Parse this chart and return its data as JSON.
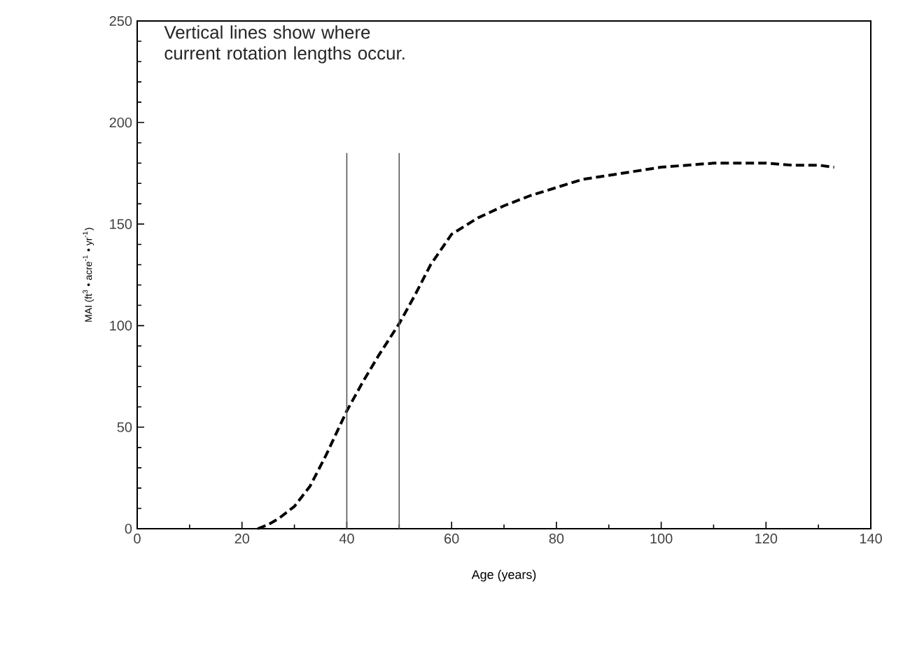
{
  "chart_data": {
    "type": "line",
    "xlabel": "Age (years)",
    "ylabel": "MAI (ft$^{3}$ • acre$^{-1}$ • yr$^{-1}$)",
    "annotations": [
      "Vertical lines show where\n current rotation lengths occur."
    ],
    "series": [
      {
        "color": "#000000",
        "line_style": "dashed",
        "x": [
          23,
          25,
          27,
          30,
          33,
          36,
          40,
          43,
          46,
          50,
          53,
          56,
          60,
          65,
          70,
          75,
          80,
          85,
          90,
          95,
          100,
          105,
          110,
          115,
          120,
          125,
          130,
          133
        ],
        "values": [
          0,
          2,
          5,
          11,
          21,
          36,
          58,
          72,
          85,
          101,
          115,
          130,
          145,
          153,
          159,
          164,
          168,
          172,
          174,
          176,
          178,
          179,
          180,
          180,
          180,
          179,
          179,
          178
        ]
      }
    ],
    "ref_lines": [
      {
        "axis": "x",
        "value": 40,
        "color": "#555555"
      },
      {
        "axis": "x",
        "value": 50,
        "color": "#555555"
      }
    ],
    "xlim": [
      0,
      140
    ],
    "xticks": [
      0,
      20,
      40,
      60,
      80,
      100,
      120,
      140
    ],
    "ylim": [
      0,
      250
    ],
    "yticks": [
      0,
      50,
      100,
      150,
      200,
      250
    ],
    "grid": false,
    "marker": "none"
  }
}
